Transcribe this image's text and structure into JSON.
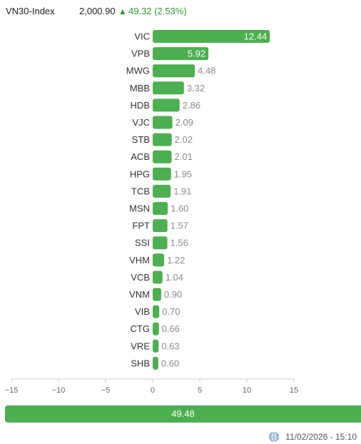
{
  "header": {
    "index_name": "VN30-Index",
    "index_value": "2,000.90",
    "change_icon": "triangle-up-icon",
    "index_change": "49.32 (2.53%)"
  },
  "chart_data": {
    "type": "bar",
    "orientation": "horizontal",
    "categories": [
      "VIC",
      "VPB",
      "MWG",
      "MBB",
      "HDB",
      "VJC",
      "STB",
      "ACB",
      "HPG",
      "TCB",
      "MSN",
      "FPT",
      "SSI",
      "VHM",
      "VCB",
      "VNM",
      "VIB",
      "CTG",
      "VRE",
      "SHB"
    ],
    "values": [
      12.44,
      5.92,
      4.48,
      3.32,
      2.86,
      2.09,
      2.02,
      2.01,
      1.95,
      1.91,
      1.6,
      1.57,
      1.56,
      1.22,
      1.04,
      0.9,
      0.7,
      0.66,
      0.63,
      0.6
    ],
    "value_labels": [
      "12.44",
      "5.92",
      "4.48",
      "3.32",
      "2.86",
      "2.09",
      "2.02",
      "2.01",
      "1.95",
      "1.91",
      "1.60",
      "1.57",
      "1.56",
      "1.22",
      "1.04",
      "0.90",
      "0.70",
      "0.66",
      "0.63",
      "0.60"
    ],
    "xlim": [
      -15,
      15
    ],
    "xticks": [
      -15,
      -10,
      -5,
      0,
      5,
      10,
      15
    ],
    "xtick_labels": [
      "−15",
      "−10",
      "−5",
      "0",
      "5",
      "10",
      "15"
    ],
    "bar_color": "#4caf50",
    "label_color": "#8c8c8c",
    "grid": false,
    "legend": "none"
  },
  "total": {
    "value_label": "49.48",
    "color": "#4caf50"
  },
  "footer": {
    "icon": "globe-icon",
    "timestamp": "11/02/2026 - 15:10"
  }
}
